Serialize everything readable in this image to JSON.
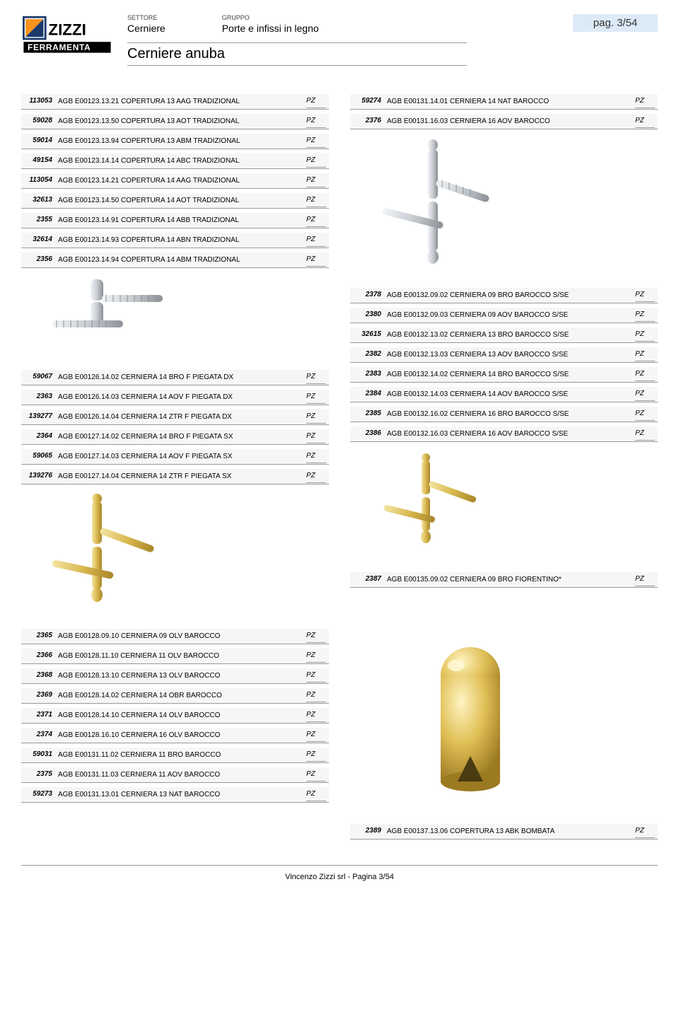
{
  "header": {
    "settore_label": "SETTORE",
    "settore_value": "Cerniere",
    "gruppo_label": "GRUPPO",
    "gruppo_value": "Porte e infissi in legno",
    "group_title": "Cerniere anuba",
    "page_badge": "pag. 3/54"
  },
  "left_column": {
    "block1": [
      {
        "code": "113053",
        "desc": "AGB E00123.13.21 COPERTURA 13 AAG TRADIZIONAL",
        "unit": "PZ"
      },
      {
        "code": "59028",
        "desc": "AGB E00123.13.50 COPERTURA 13 AOT TRADIZIONAL",
        "unit": "PZ"
      },
      {
        "code": "59014",
        "desc": "AGB E00123.13.94 COPERTURA 13 ABM TRADIZIONAL",
        "unit": "PZ"
      },
      {
        "code": "49154",
        "desc": "AGB E00123.14.14 COPERTURA 14 ABC TRADIZIONAL",
        "unit": "PZ"
      },
      {
        "code": "113054",
        "desc": "AGB E00123.14.21 COPERTURA 14 AAG TRADIZIONAL",
        "unit": "PZ"
      },
      {
        "code": "32613",
        "desc": "AGB E00123.14.50 COPERTURA 14 AOT TRADIZIONAL",
        "unit": "PZ"
      },
      {
        "code": "2355",
        "desc": "AGB E00123.14.91 COPERTURA 14 ABB TRADIZIONAL",
        "unit": "PZ"
      },
      {
        "code": "32614",
        "desc": "AGB E00123.14.93 COPERTURA 14 ABN TRADIZIONAL",
        "unit": "PZ"
      },
      {
        "code": "2356",
        "desc": "AGB E00123.14.94 COPERTURA 14 ABM TRADIZIONAL",
        "unit": "PZ"
      }
    ],
    "block2": [
      {
        "code": "59067",
        "desc": "AGB E00126.14.02 CERNIERA 14 BRO F PIEGATA DX",
        "unit": "PZ"
      },
      {
        "code": "2363",
        "desc": "AGB E00126.14.03 CERNIERA 14 AOV F PIEGATA DX",
        "unit": "PZ"
      },
      {
        "code": "139277",
        "desc": "AGB E00126.14.04 CERNIERA 14 ZTR F PIEGATA DX",
        "unit": "PZ"
      },
      {
        "code": "2364",
        "desc": "AGB E00127.14.02 CERNIERA 14 BRO F PIEGATA SX",
        "unit": "PZ"
      },
      {
        "code": "59065",
        "desc": "AGB E00127.14.03 CERNIERA 14 AOV F PIEGATA SX",
        "unit": "PZ"
      },
      {
        "code": "139276",
        "desc": "AGB E00127.14.04 CERNIERA 14 ZTR F PIEGATA SX",
        "unit": "PZ"
      }
    ],
    "block3": [
      {
        "code": "2365",
        "desc": "AGB E00128.09.10 CERNIERA 09 OLV BAROCCO",
        "unit": "PZ"
      },
      {
        "code": "2366",
        "desc": "AGB E00128.11.10 CERNIERA 11 OLV BAROCCO",
        "unit": "PZ"
      },
      {
        "code": "2368",
        "desc": "AGB E00128.13.10 CERNIERA 13 OLV BAROCCO",
        "unit": "PZ"
      },
      {
        "code": "2369",
        "desc": "AGB E00128.14.02 CERNIERA 14 OBR BAROCCO",
        "unit": "PZ"
      },
      {
        "code": "2371",
        "desc": "AGB E00128.14.10 CERNIERA 14 OLV BAROCCO",
        "unit": "PZ"
      },
      {
        "code": "2374",
        "desc": "AGB E00128.16.10 CERNIERA 16 OLV BAROCCO",
        "unit": "PZ"
      },
      {
        "code": "59031",
        "desc": "AGB E00131.11.02 CERNIERA 11 BRO BAROCCO",
        "unit": "PZ"
      },
      {
        "code": "2375",
        "desc": "AGB E00131.11.03 CERNIERA 11 AOV BAROCCO",
        "unit": "PZ"
      },
      {
        "code": "59273",
        "desc": "AGB E00131.13.01 CERNIERA 13 NAT BAROCCO",
        "unit": "PZ"
      }
    ]
  },
  "right_column": {
    "block1": [
      {
        "code": "59274",
        "desc": "AGB E00131.14.01 CERNIERA 14 NAT BAROCCO",
        "unit": "PZ"
      },
      {
        "code": "2376",
        "desc": "AGB E00131.16.03 CERNIERA 16 AOV BAROCCO",
        "unit": "PZ"
      }
    ],
    "block2": [
      {
        "code": "2378",
        "desc": "AGB E00132.09.02 CERNIERA 09 BRO BAROCCO S/SE",
        "unit": "PZ"
      },
      {
        "code": "2380",
        "desc": "AGB E00132.09.03 CERNIERA 09 AOV BAROCCO S/SE",
        "unit": "PZ"
      },
      {
        "code": "32615",
        "desc": "AGB E00132.13.02 CERNIERA 13 BRO BAROCCO S/SE",
        "unit": "PZ"
      },
      {
        "code": "2382",
        "desc": "AGB E00132.13.03 CERNIERA 13 AOV BAROCCO S/SE",
        "unit": "PZ"
      },
      {
        "code": "2383",
        "desc": "AGB E00132.14.02 CERNIERA 14 BRO BAROCCO S/SE",
        "unit": "PZ"
      },
      {
        "code": "2384",
        "desc": "AGB E00132.14.03 CERNIERA 14 AOV BAROCCO S/SE",
        "unit": "PZ"
      },
      {
        "code": "2385",
        "desc": "AGB E00132.16.02 CERNIERA 16 BRO BAROCCO S/SE",
        "unit": "PZ"
      },
      {
        "code": "2386",
        "desc": "AGB E00132.16.03 CERNIERA 16 AOV BAROCCO S/SE",
        "unit": "PZ"
      }
    ],
    "block3": [
      {
        "code": "2387",
        "desc": "AGB E00135.09.02 CERNIERA 09 BRO FIORENTINO*",
        "unit": "PZ"
      }
    ],
    "block4": [
      {
        "code": "2389",
        "desc": "AGB E00137.13.06 COPERTURA 13 ABK BOMBATA",
        "unit": "PZ"
      }
    ]
  },
  "footer": "Vincenzo Zizzi srl - Pagina 3/54",
  "colors": {
    "badge_bg": "#dceaf7",
    "row_bg": "#f6f6f6",
    "border": "#999999",
    "logo_orange": "#f7941e",
    "logo_navy": "#1b3a6b",
    "logo_black": "#000000",
    "chrome": "#c8cdd2",
    "chrome_dark": "#8a9096",
    "gold": "#d9b84f",
    "gold_dark": "#a8862a"
  }
}
